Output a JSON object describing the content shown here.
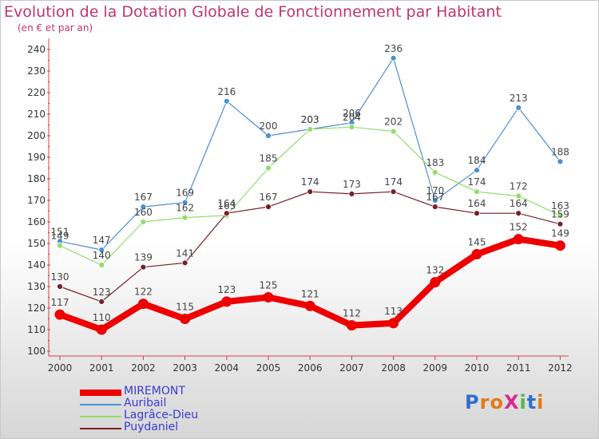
{
  "title": "Evolution de la Dotation Globale de Fonctionnement par Habitant",
  "subtitle": "(en € et par an)",
  "logo": {
    "text": "Proxiti",
    "letters": [
      {
        "ch": "P",
        "color": "#2f6fce"
      },
      {
        "ch": "r",
        "color": "#e07b1a"
      },
      {
        "ch": "o",
        "color": "#e07b1a"
      },
      {
        "ch": "X",
        "color": "#d62a8e"
      },
      {
        "ch": "i",
        "color": "#53b848"
      },
      {
        "ch": "t",
        "color": "#2f6fce"
      },
      {
        "ch": "i",
        "color": "#e07b1a"
      }
    ]
  },
  "chart_data": {
    "type": "line",
    "x": [
      "2000",
      "2001",
      "2002",
      "2003",
      "2004",
      "2005",
      "2006",
      "2007",
      "2008",
      "2009",
      "2010",
      "2011",
      "2012"
    ],
    "ylim": [
      100,
      240
    ],
    "yticks": [
      100,
      110,
      120,
      130,
      140,
      150,
      160,
      170,
      180,
      190,
      200,
      210,
      220,
      230,
      240
    ],
    "grid": false,
    "legend_position": "bottom-left",
    "series": [
      {
        "name": "Auribail",
        "color": "#4a8fd1",
        "line_width": 1.2,
        "marker_r": 3.5,
        "values": [
          151,
          147,
          167,
          169,
          216,
          200,
          203,
          206,
          236,
          170,
          184,
          213,
          188
        ]
      },
      {
        "name": "Lagrâce-Dieu",
        "color": "#93dc6a",
        "line_width": 1.2,
        "marker_r": 3.5,
        "values": [
          149,
          140,
          160,
          162,
          163,
          185,
          203,
          204,
          202,
          183,
          174,
          172,
          163
        ]
      },
      {
        "name": "Puydaniel",
        "color": "#7a1f2a",
        "line_width": 1.2,
        "marker_r": 3.5,
        "values": [
          130,
          123,
          139,
          141,
          164,
          167,
          174,
          173,
          174,
          167,
          164,
          164,
          159
        ]
      },
      {
        "name": "MIREMONT",
        "color": "#ee0000",
        "line_width": 8,
        "marker_r": 6.5,
        "values": [
          117,
          110,
          122,
          115,
          123,
          125,
          121,
          112,
          113,
          132,
          145,
          152,
          149
        ]
      }
    ],
    "legend_order": [
      "MIREMONT",
      "Auribail",
      "Lagrâce-Dieu",
      "Puydaniel"
    ]
  }
}
